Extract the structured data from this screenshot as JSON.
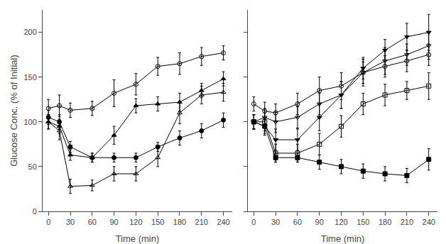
{
  "chart_data": [
    {
      "type": "line",
      "x": [
        0,
        15,
        30,
        60,
        90,
        120,
        150,
        180,
        210,
        240
      ],
      "xlabel": "Time (min)",
      "ylabel": "Glucose Conc. (% of Initial)",
      "xlim": [
        -8,
        252
      ],
      "xticks": [
        0,
        30,
        60,
        90,
        120,
        150,
        180,
        210,
        240
      ],
      "ylim": [
        0,
        225
      ],
      "yticks": [
        0,
        50,
        100,
        150,
        200
      ],
      "grid": false,
      "series": [
        {
          "color": "black",
          "marker": "circle-open",
          "values": [
            115,
            118,
            113,
            115,
            132,
            142,
            162,
            165,
            173,
            177
          ],
          "yerr": [
            10,
            12,
            8,
            8,
            15,
            12,
            10,
            12,
            10,
            8
          ]
        },
        {
          "color": "black",
          "marker": "triangle-up",
          "values": [
            100,
            95,
            63,
            60,
            85,
            118,
            120,
            122,
            135,
            148
          ],
          "yerr": [
            8,
            8,
            6,
            5,
            10,
            8,
            8,
            10,
            8,
            8
          ]
        },
        {
          "color": "black",
          "marker": "triangle-up-open",
          "values": [
            100,
            90,
            28,
            29,
            42,
            42,
            60,
            110,
            130,
            133
          ],
          "yerr": [
            8,
            10,
            8,
            6,
            8,
            8,
            10,
            12,
            10,
            10
          ]
        },
        {
          "color": "black",
          "marker": "circle",
          "values": [
            105,
            100,
            72,
            60,
            60,
            60,
            72,
            82,
            90,
            102
          ],
          "yerr": [
            8,
            8,
            6,
            5,
            5,
            5,
            5,
            8,
            8,
            8
          ]
        }
      ]
    },
    {
      "type": "line",
      "x": [
        0,
        15,
        30,
        60,
        90,
        120,
        150,
        180,
        210,
        240
      ],
      "xlabel": "Time (min)",
      "xlim": [
        -8,
        252
      ],
      "xticks": [
        0,
        30,
        60,
        90,
        120,
        150,
        180,
        210,
        240
      ],
      "ylim": [
        0,
        225
      ],
      "yticks": [
        0,
        50,
        100,
        150,
        200
      ],
      "grid": false,
      "tick_labels": "x",
      "series": [
        {
          "color": "black",
          "marker": "triangle-down",
          "values": [
            100,
            95,
            80,
            80,
            105,
            130,
            160,
            180,
            195,
            200
          ],
          "yerr": [
            8,
            10,
            12,
            12,
            15,
            15,
            12,
            12,
            15,
            20
          ]
        },
        {
          "color": "black",
          "marker": "triangle-down-open",
          "values": [
            100,
            105,
            100,
            105,
            120,
            130,
            155,
            168,
            175,
            185
          ],
          "yerr": [
            8,
            10,
            12,
            12,
            12,
            15,
            15,
            15,
            12,
            15
          ]
        },
        {
          "color": "black",
          "marker": "circle-open",
          "values": [
            120,
            112,
            110,
            120,
            135,
            140,
            155,
            162,
            168,
            175
          ],
          "yerr": [
            8,
            10,
            10,
            12,
            15,
            15,
            12,
            12,
            12,
            12
          ]
        },
        {
          "color": "black",
          "marker": "square-open",
          "values": [
            100,
            100,
            65,
            65,
            75,
            95,
            120,
            130,
            135,
            140
          ],
          "yerr": [
            8,
            10,
            10,
            10,
            12,
            12,
            12,
            12,
            10,
            15
          ]
        },
        {
          "color": "black",
          "marker": "square",
          "values": [
            100,
            95,
            60,
            60,
            55,
            50,
            45,
            42,
            40,
            58
          ],
          "yerr": [
            8,
            8,
            5,
            5,
            8,
            8,
            8,
            8,
            8,
            12
          ]
        }
      ]
    }
  ]
}
